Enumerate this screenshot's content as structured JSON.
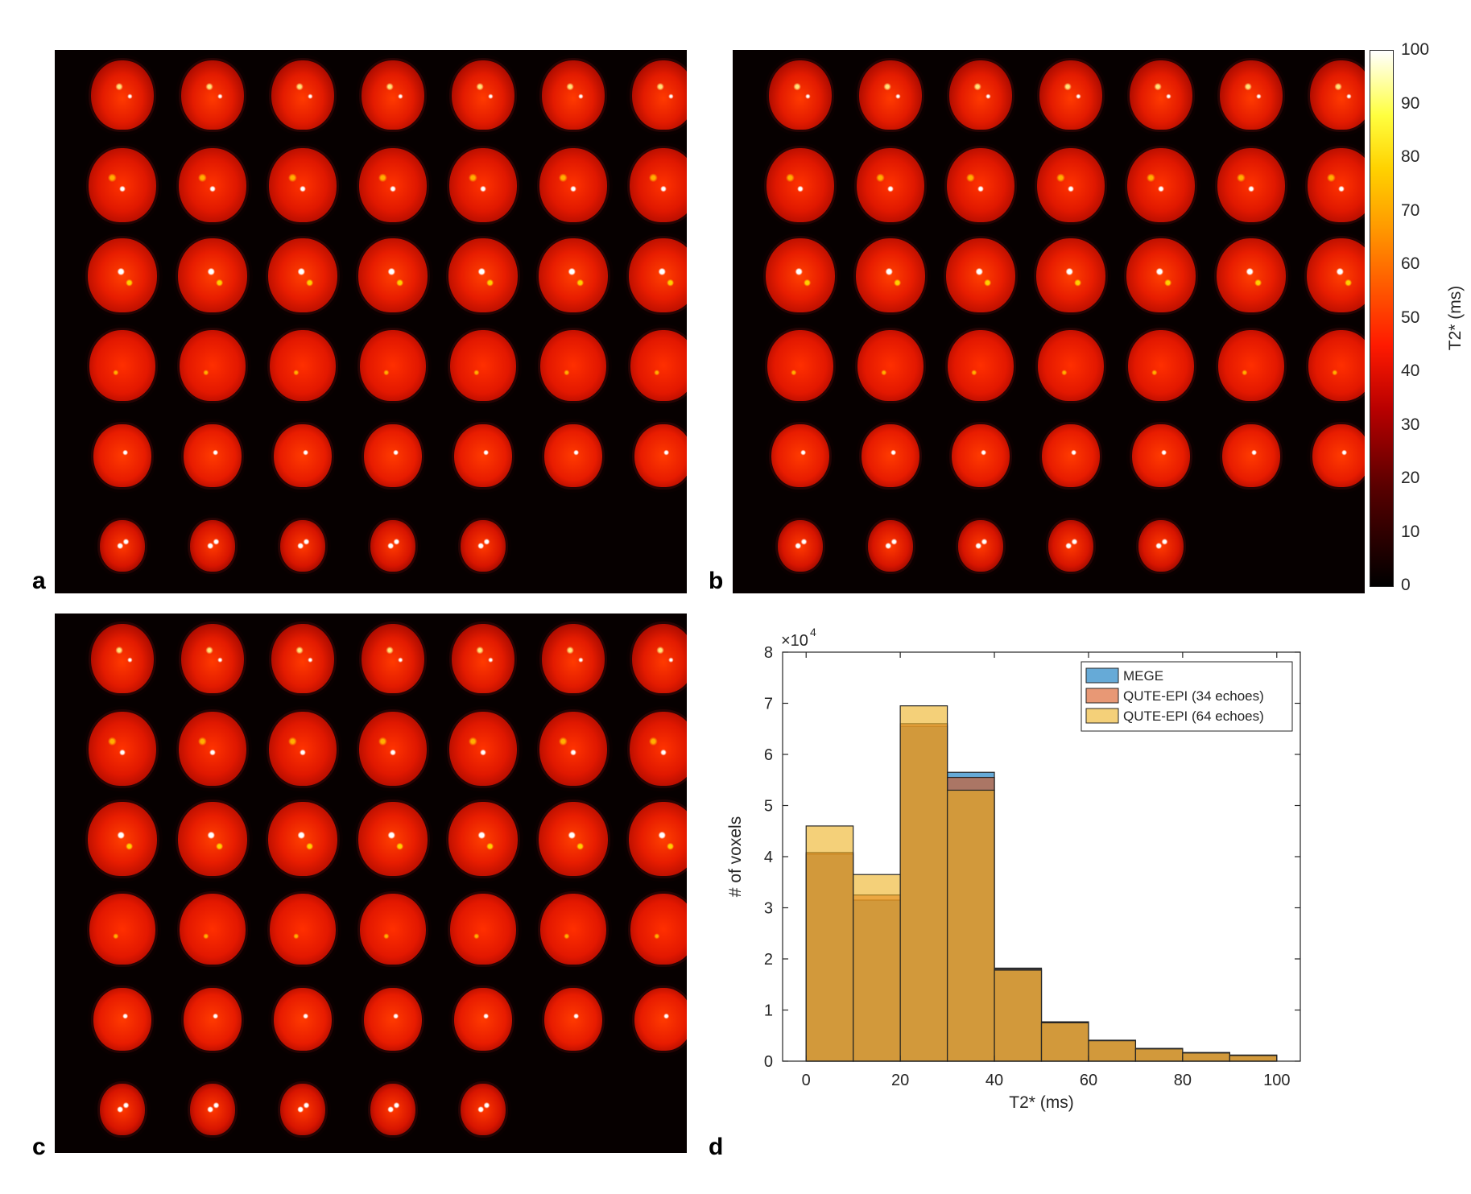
{
  "panels": {
    "a": {
      "letter": "a",
      "rows": [
        7,
        7,
        7,
        7,
        7,
        5
      ]
    },
    "b": {
      "letter": "b",
      "rows": [
        7,
        7,
        7,
        7,
        7,
        5
      ]
    },
    "c": {
      "letter": "c",
      "rows": [
        7,
        7,
        7,
        7,
        7,
        5
      ]
    },
    "d": {
      "letter": "d"
    }
  },
  "colorbar": {
    "label": "T2* (ms)",
    "range": [
      0,
      100
    ],
    "ticks": [
      "0",
      "10",
      "20",
      "30",
      "40",
      "50",
      "60",
      "70",
      "80",
      "90",
      "100"
    ],
    "colormap": "hot"
  },
  "chart_data": {
    "type": "bar",
    "title": "",
    "xlabel": "T2* (ms)",
    "ylabel": "# of voxels",
    "xlim": [
      -5,
      105
    ],
    "ylim": [
      0,
      80000
    ],
    "xticks": [
      "0",
      "20",
      "40",
      "60",
      "80",
      "100"
    ],
    "yticks": [
      "0",
      "1",
      "2",
      "3",
      "4",
      "5",
      "6",
      "7",
      "8"
    ],
    "y_exponent_label": "×10",
    "y_exponent_power": "4",
    "bin_edges": [
      0,
      10,
      20,
      30,
      40,
      50,
      60,
      70,
      80,
      90,
      100
    ],
    "legend_position": "top-right",
    "series": [
      {
        "name": "MEGE",
        "color": "#0072bd",
        "values": [
          40500,
          31500,
          65500,
          56500,
          18200,
          7700,
          4100,
          2500,
          1700,
          1200
        ]
      },
      {
        "name": "QUTE-EPI (34 echoes)",
        "color": "#d95319",
        "values": [
          40800,
          32500,
          66000,
          55500,
          18000,
          7600,
          4000,
          2400,
          1600,
          1100
        ]
      },
      {
        "name": "QUTE-EPI (64 echoes)",
        "color": "#edb120",
        "values": [
          46000,
          36500,
          69500,
          53000,
          17800,
          7500,
          4000,
          2400,
          1600,
          1100
        ]
      }
    ]
  }
}
